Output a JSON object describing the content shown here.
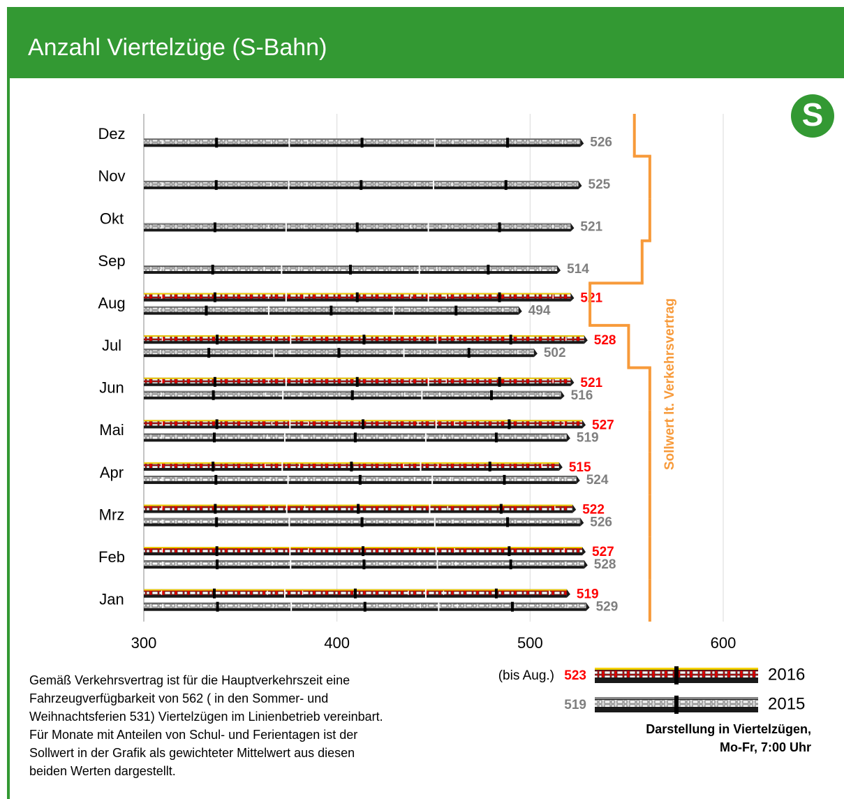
{
  "chart_data": {
    "type": "bar",
    "title": "Anzahl Viertelzüge (S-Bahn)",
    "categories": [
      "Jan",
      "Feb",
      "Mrz",
      "Apr",
      "Mai",
      "Jun",
      "Jul",
      "Aug",
      "Sep",
      "Okt",
      "Nov",
      "Dez"
    ],
    "series": [
      {
        "name": "2016",
        "color": "#ff0000",
        "values": [
          519,
          527,
          522,
          515,
          527,
          521,
          528,
          521,
          null,
          null,
          null,
          null
        ],
        "legend_note": "(bis Aug.)",
        "mean": 523
      },
      {
        "name": "2015",
        "color": "#7f7f7f",
        "values": [
          529,
          528,
          526,
          524,
          519,
          516,
          502,
          494,
          514,
          521,
          525,
          526
        ],
        "mean": 519
      }
    ],
    "sollwert": {
      "label": "Sollwert lt. Verkehrsvertrag",
      "color": "#f79a3a",
      "values": [
        562,
        562,
        562,
        562,
        562,
        562,
        551,
        531,
        558,
        562,
        562,
        554
      ]
    },
    "xlim": [
      300,
      600
    ],
    "xticks": [
      300,
      400,
      500,
      600
    ],
    "grid": true,
    "legend_caption": [
      "Darstellung in Viertelzügen,",
      "Mo-Fr, 7:00 Uhr"
    ],
    "note": [
      "Gemäß Verkehrsvertrag ist für die Hauptverkehrszeit eine",
      "Fahrzeugverfügbarkeit von 562 ( in den Sommer- und",
      "Weihnachtsferien 531) Viertelzügen im Linienbetrieb vereinbart.",
      "Für Monate mit Anteilen von Schul- und Ferientagen ist der",
      "Sollwert in der Grafik als gewichteter Mittelwert aus diesen",
      "beiden Werten dargestellt."
    ]
  }
}
